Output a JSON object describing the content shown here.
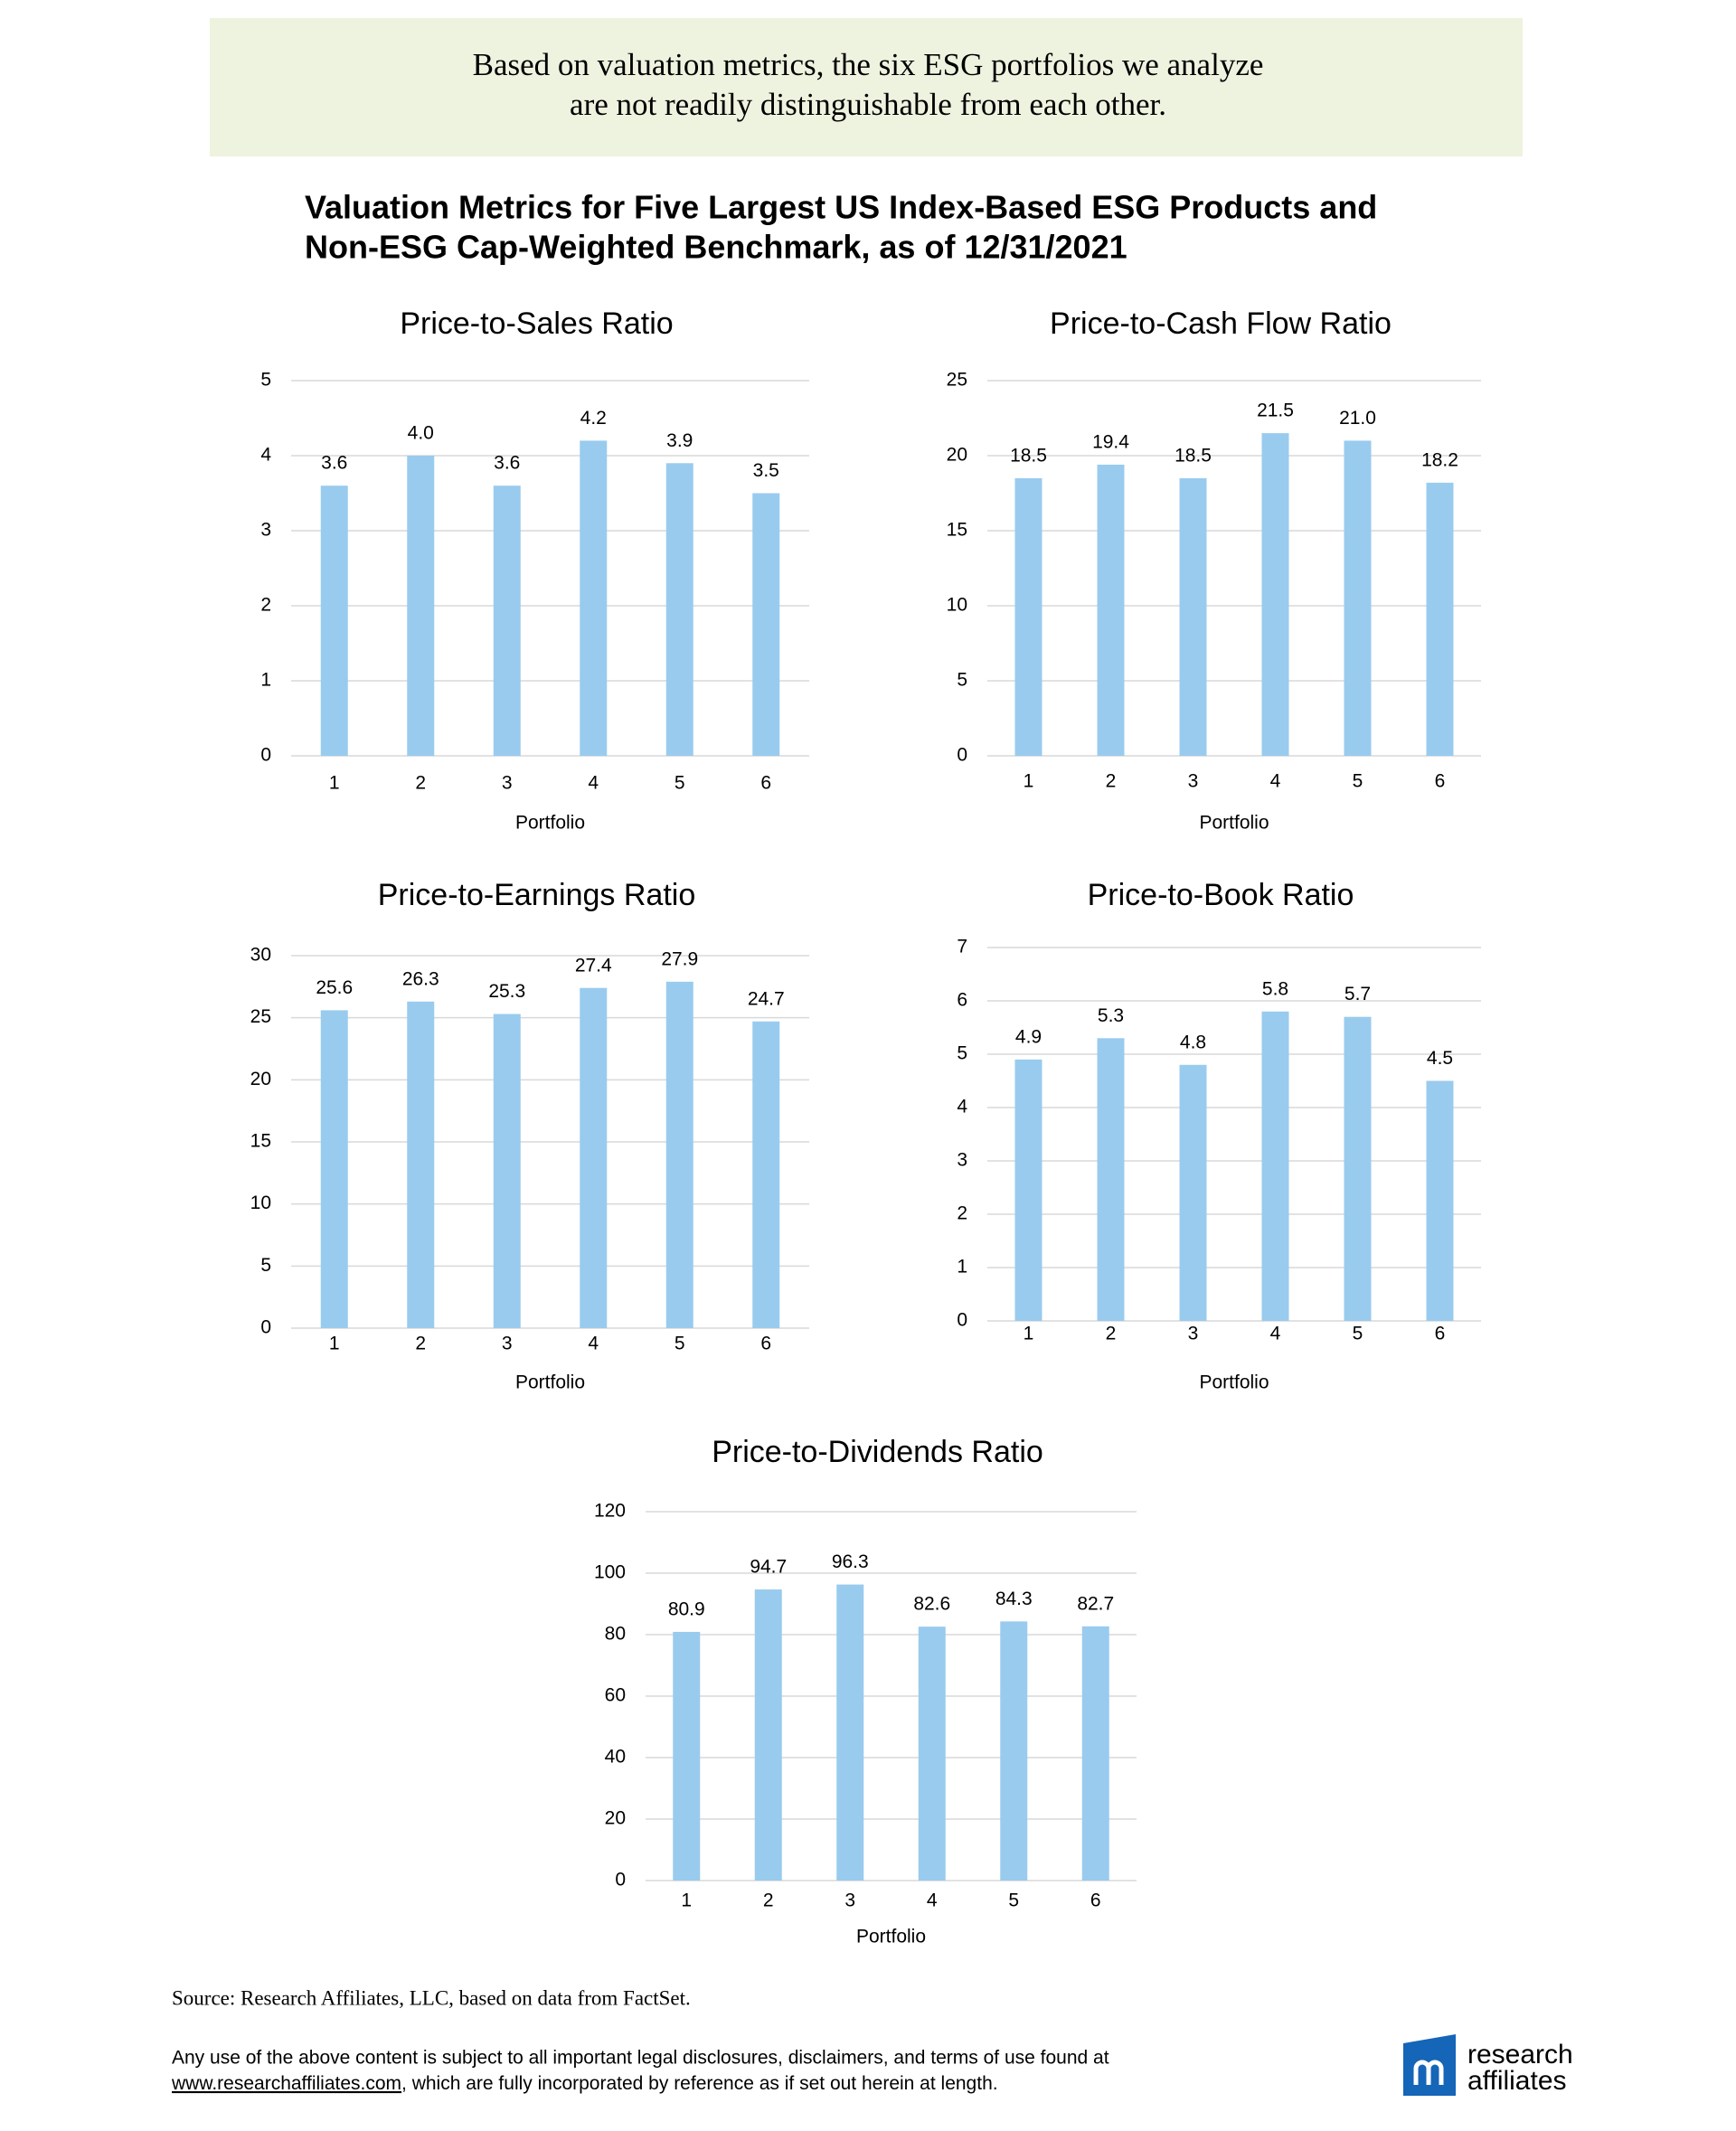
{
  "banner": [
    "Based on valuation metrics, the six ESG portfolios we analyze",
    "are not readily distinguishable from each other."
  ],
  "figure_title": [
    "Valuation Metrics for Five Largest US Index-Based ESG Products and",
    "Non-ESG Cap-Weighted Benchmark, as of 12/31/2021"
  ],
  "chart_data": [
    {
      "type": "bar",
      "title": "Price-to-Sales Ratio",
      "x_label": "Portfolio",
      "categories": [
        "1",
        "2",
        "3",
        "4",
        "5",
        "6"
      ],
      "values": [
        3.6,
        4.0,
        3.6,
        4.2,
        3.9,
        3.5
      ],
      "value_labels": [
        "3.6",
        "4.0",
        "3.6",
        "4.2",
        "3.9",
        "3.5"
      ],
      "color": "#99cbee",
      "ylim": [
        0,
        5
      ],
      "yticks": [
        0,
        1,
        2,
        3,
        4,
        5
      ],
      "grid": true
    },
    {
      "type": "bar",
      "title": "Price-to-Cash Flow Ratio",
      "x_label": "Portfolio",
      "categories": [
        "1",
        "2",
        "3",
        "4",
        "5",
        "6"
      ],
      "values": [
        18.5,
        19.4,
        18.5,
        21.5,
        21.0,
        18.2
      ],
      "value_labels": [
        "18.5",
        "19.4",
        "18.5",
        "21.5",
        "21.0",
        "18.2"
      ],
      "color": "#99cbee",
      "ylim": [
        0,
        25
      ],
      "yticks": [
        0,
        5,
        10,
        15,
        20,
        25
      ],
      "grid": true
    },
    {
      "type": "bar",
      "title": "Price-to-Earnings Ratio",
      "x_label": "Portfolio",
      "categories": [
        "1",
        "2",
        "3",
        "4",
        "5",
        "6"
      ],
      "values": [
        25.6,
        26.3,
        25.3,
        27.4,
        27.9,
        24.7
      ],
      "value_labels": [
        "25.6",
        "26.3",
        "25.3",
        "27.4",
        "27.9",
        "24.7"
      ],
      "color": "#99cbee",
      "ylim": [
        0,
        30
      ],
      "yticks": [
        0,
        5,
        10,
        15,
        20,
        25,
        30
      ],
      "grid": true
    },
    {
      "type": "bar",
      "title": "Price-to-Book Ratio",
      "x_label": "Portfolio",
      "categories": [
        "1",
        "2",
        "3",
        "4",
        "5",
        "6"
      ],
      "values": [
        4.9,
        5.3,
        4.8,
        5.8,
        5.7,
        4.5
      ],
      "value_labels": [
        "4.9",
        "5.3",
        "4.8",
        "5.8",
        "5.7",
        "4.5"
      ],
      "color": "#99cbee",
      "ylim": [
        0,
        7
      ],
      "yticks": [
        0,
        1,
        2,
        3,
        4,
        5,
        6,
        7
      ],
      "grid": true
    },
    {
      "type": "bar",
      "title": "Price-to-Dividends Ratio",
      "x_label": "Portfolio",
      "categories": [
        "1",
        "2",
        "3",
        "4",
        "5",
        "6"
      ],
      "values": [
        80.9,
        94.7,
        96.3,
        82.6,
        84.3,
        82.7
      ],
      "value_labels": [
        "80.9",
        "94.7",
        "96.3",
        "82.6",
        "84.3",
        "82.7"
      ],
      "color": "#99cbee",
      "ylim": [
        0,
        120
      ],
      "yticks": [
        0,
        20,
        40,
        60,
        80,
        100,
        120
      ],
      "grid": true
    }
  ],
  "source": "Source: Research Affiliates, LLC, based on data from FactSet.",
  "disclaimer": {
    "line1": "Any use of the above content is subject to all important legal disclosures, disclaimers, and terms of use found at",
    "link": "www.researchaffiliates.com",
    "line2": ", which are fully incorporated by reference as if set out herein at length."
  },
  "logo": [
    "research",
    "affiliates"
  ]
}
